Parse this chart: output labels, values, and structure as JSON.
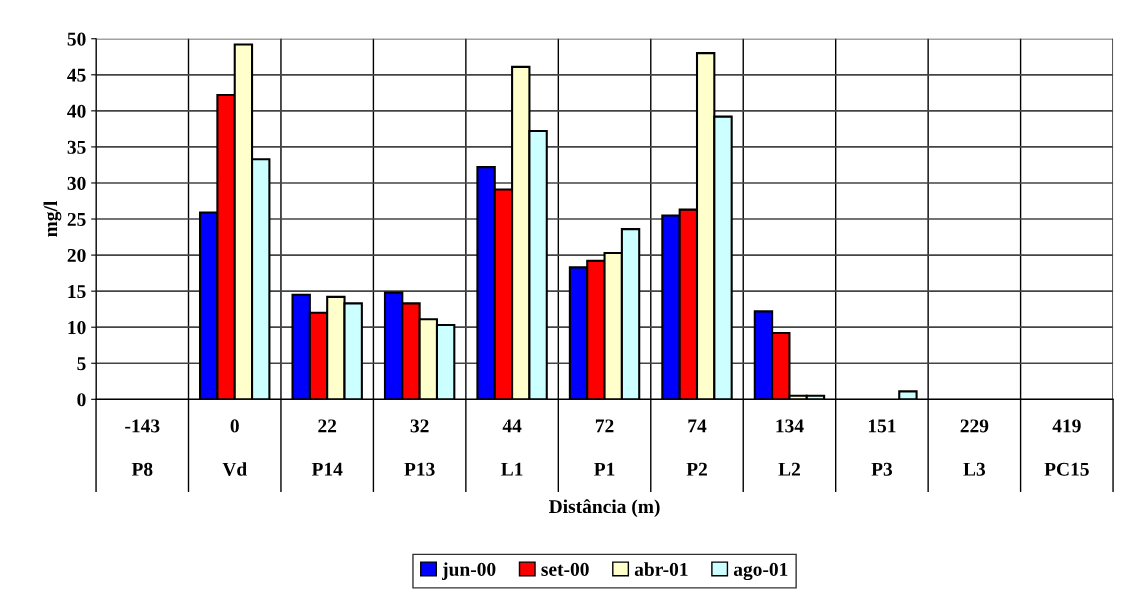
{
  "chart_data": {
    "type": "bar",
    "xlabel": "Distância (m)",
    "ylabel": "mg/l",
    "categories": [
      "-143\nP8",
      "0\nVd",
      "22\nP14",
      "32\nP13",
      "44\nL1",
      "72\nP1",
      "74\nP2",
      "134\nL2",
      "151\nP3",
      "229\nL3",
      "419\nPC15"
    ],
    "series": [
      {
        "name": "jun-00",
        "color": "#0000ff",
        "values": [
          null,
          25.9,
          14.5,
          14.8,
          32.2,
          18.3,
          25.5,
          12.2,
          null,
          null,
          null
        ]
      },
      {
        "name": "set-00",
        "color": "#ff0000",
        "values": [
          null,
          42.2,
          12.0,
          13.3,
          29.1,
          19.2,
          26.3,
          9.2,
          null,
          null,
          null
        ]
      },
      {
        "name": "abr-01",
        "color": "#ffffcc",
        "values": [
          null,
          49.2,
          14.2,
          11.1,
          46.1,
          20.3,
          48.0,
          0.5,
          null,
          null,
          null
        ]
      },
      {
        "name": "ago-01",
        "color": "#ccffff",
        "values": [
          null,
          33.3,
          13.3,
          10.3,
          37.2,
          23.6,
          39.2,
          0.5,
          1.1,
          null,
          null
        ]
      }
    ],
    "ylim": [
      0,
      50
    ],
    "yticks": [
      0,
      5,
      10,
      15,
      20,
      25,
      30,
      35,
      40,
      45,
      50
    ],
    "grid": true,
    "legend": "bottom"
  }
}
